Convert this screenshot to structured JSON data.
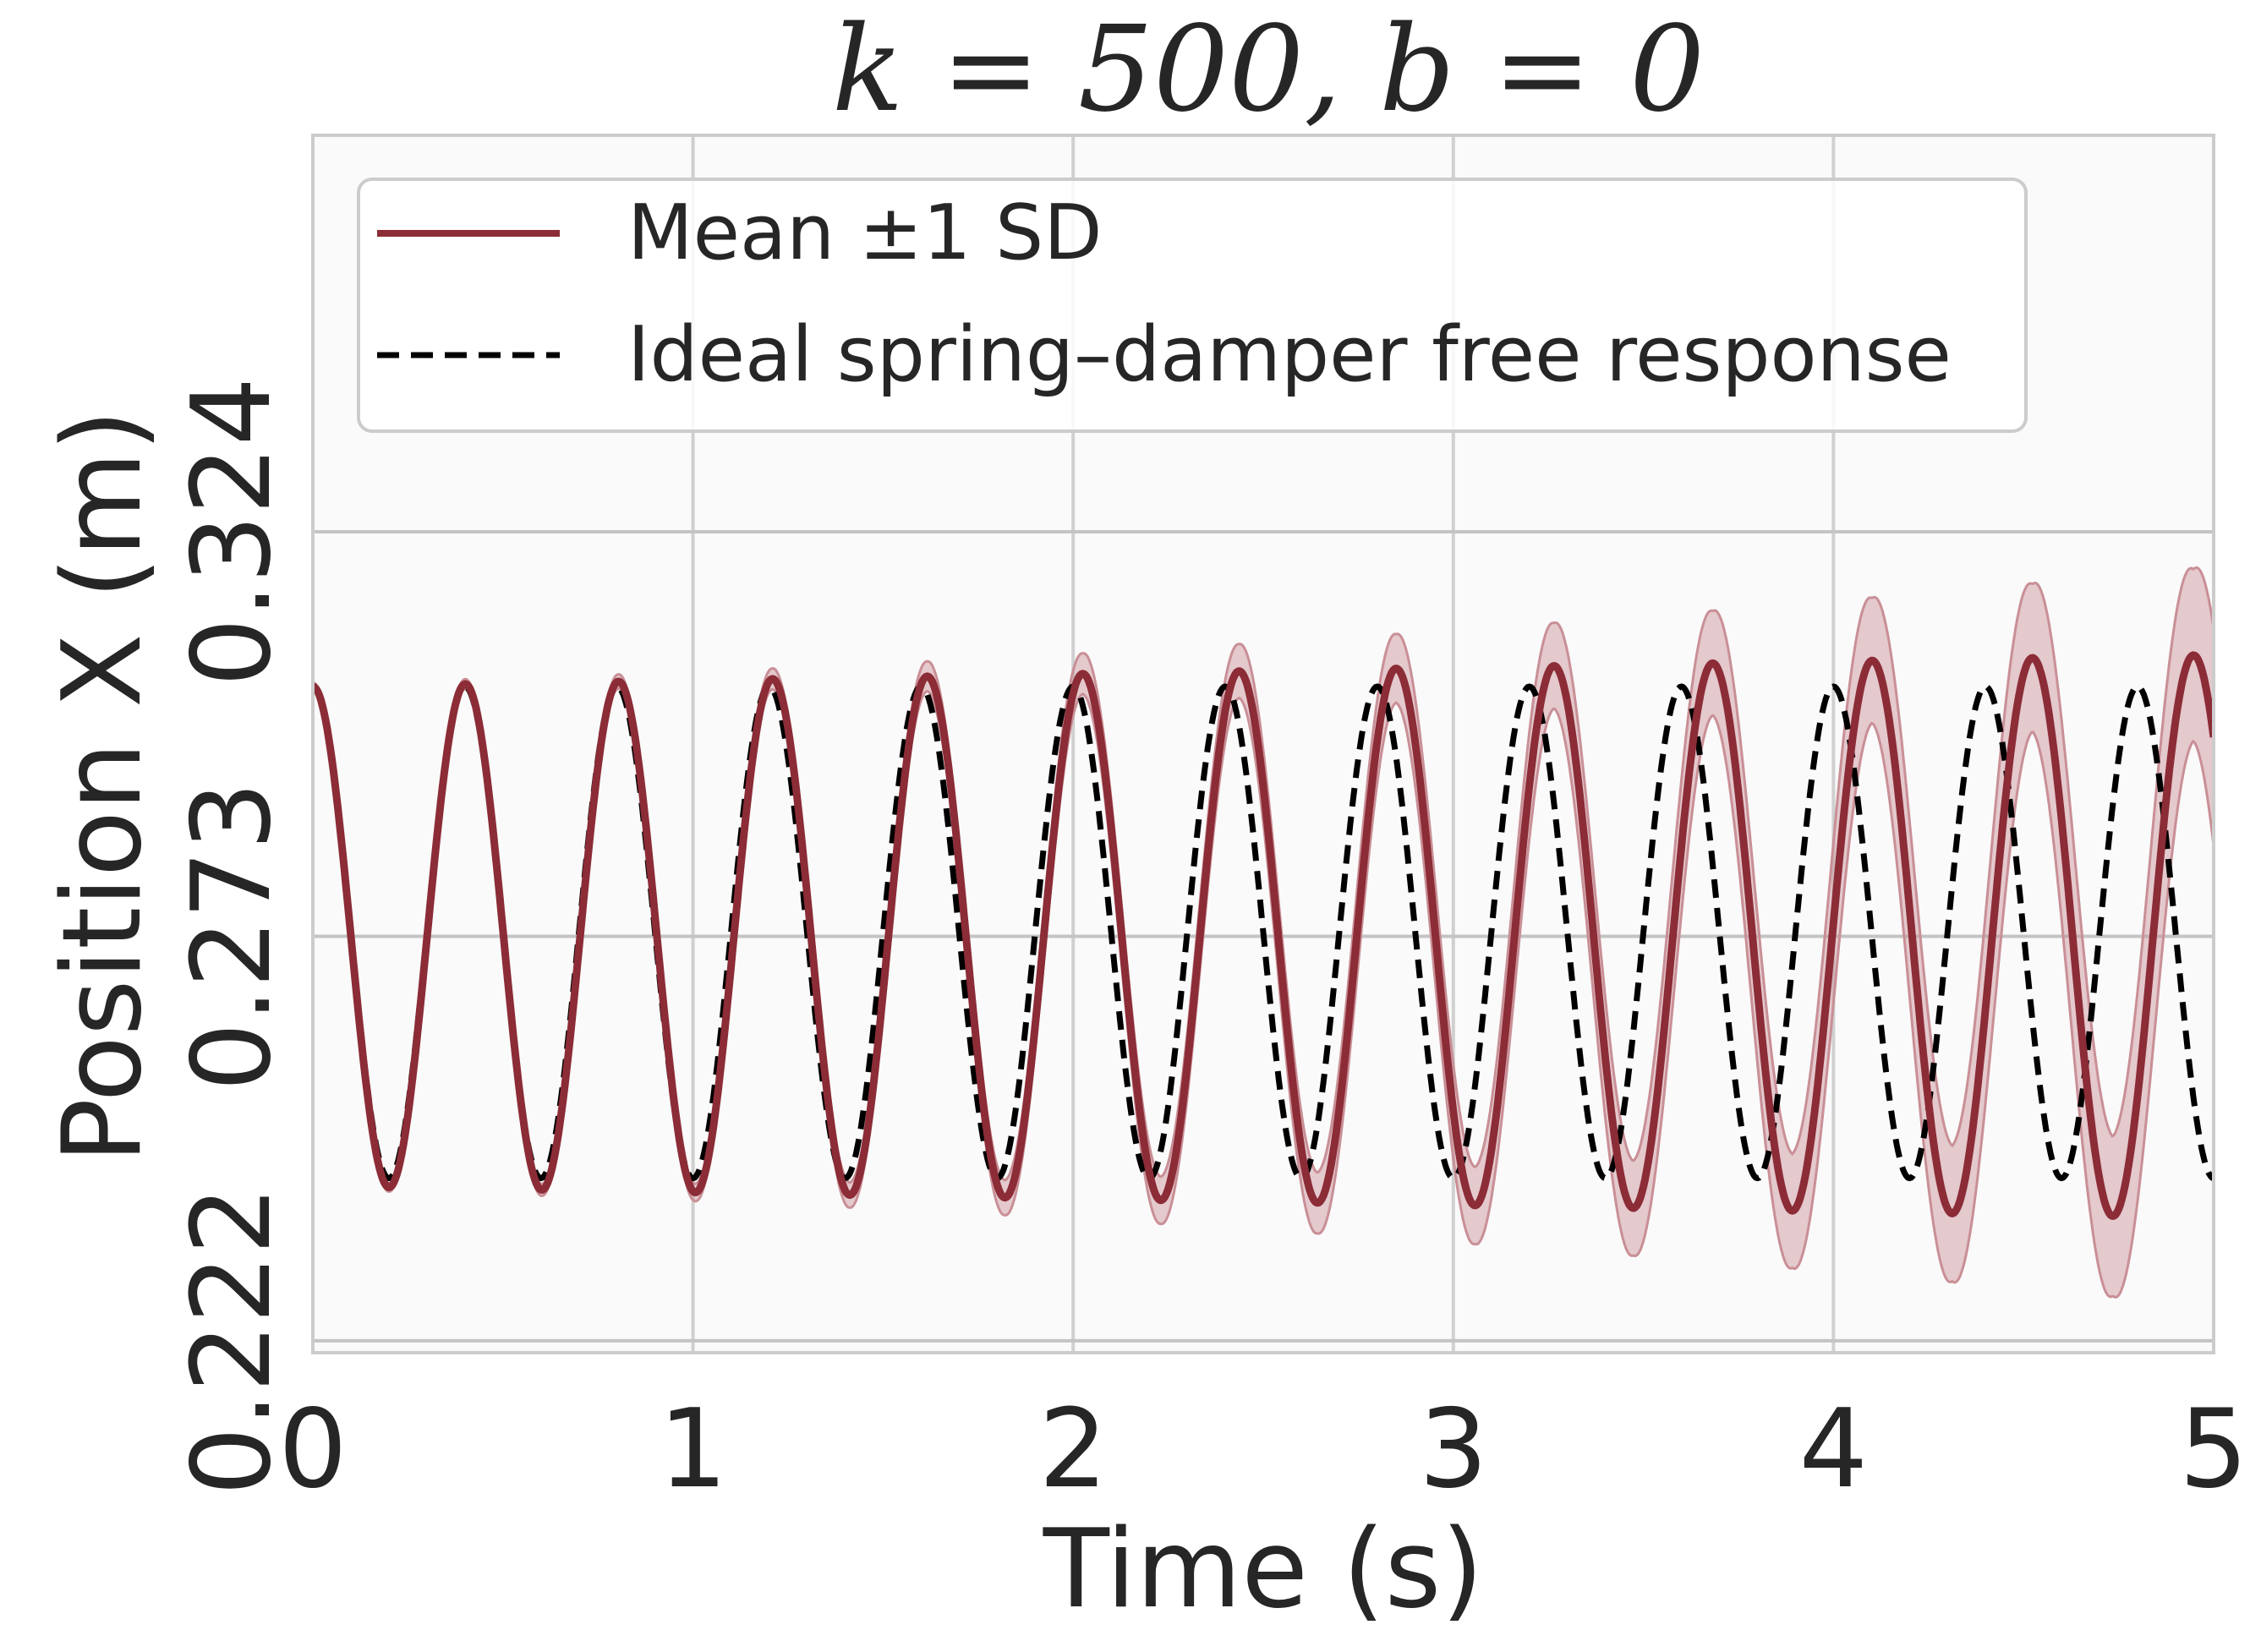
{
  "chart_data": {
    "type": "line",
    "title": "k = 500, b = 0",
    "xlabel": "Time (s)",
    "ylabel": "Position X (m)",
    "xlim": [
      0,
      5
    ],
    "ylim": [
      0.2205,
      0.374
    ],
    "xticks": [
      0,
      1,
      2,
      3,
      4,
      5
    ],
    "xtick_labels": [
      "0",
      "1",
      "2",
      "3",
      "4",
      "5"
    ],
    "yticks": [
      0.222,
      0.273,
      0.324
    ],
    "ytick_labels": [
      "0.222",
      "0.273",
      "0.324"
    ],
    "grid": true,
    "legend_position": "top-left",
    "series": [
      {
        "name": "Mean ±1 SD",
        "style": "solid line with shaded ±1 SD band",
        "color": "#8b2c36",
        "band_color": "#c98f96",
        "mean_model": {
          "equilibrium": 0.273,
          "amplitude_start": 0.0315,
          "amplitude_end": 0.0355,
          "period_start": 0.4,
          "period_end": 0.425,
          "initial_value": 0.3045
        },
        "sd_model": {
          "sd_start": 0.0005,
          "sd_end": 0.011
        }
      },
      {
        "name": "Ideal spring–damper free response",
        "style": "dashed line",
        "color": "#000000",
        "model": {
          "equilibrium": 0.2735,
          "amplitude": 0.031,
          "period": 0.4,
          "initial_value": 0.3045
        }
      }
    ]
  }
}
